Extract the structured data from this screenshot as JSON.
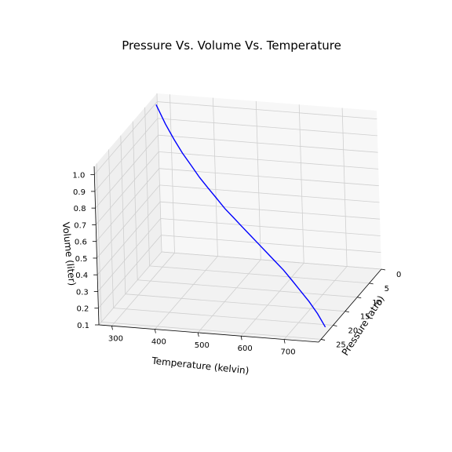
{
  "chart_data": {
    "type": "line3d",
    "title": "Pressure Vs. Volume Vs. Temperature",
    "xlabel": "Temperature (kelvin)",
    "ylabel": "Pressure (atm)",
    "zlabel": "Volume (liter)",
    "x_ticks": [
      "300",
      "400",
      "500",
      "600",
      "700"
    ],
    "y_ticks": [
      "0",
      "5",
      "10",
      "15",
      "20",
      "25"
    ],
    "z_ticks": [
      "0.1",
      "0.2",
      "0.3",
      "0.4",
      "0.5",
      "0.6",
      "0.7",
      "0.8",
      "0.9",
      "1.0"
    ],
    "xlim": [
      270,
      780
    ],
    "ylim": [
      0,
      26
    ],
    "zlim": [
      0.1,
      1.05
    ],
    "grid": true,
    "series": [
      {
        "color": "#0000ff",
        "temperature": [
          273,
          300,
          325,
          350,
          375,
          400,
          425,
          450,
          475,
          500,
          525,
          550,
          575,
          600,
          625,
          650,
          675,
          700,
          725,
          750,
          773
        ],
        "pressure": [
          1.0,
          2.15,
          3.2,
          4.25,
          5.3,
          6.35,
          7.4,
          8.4,
          9.45,
          10.5,
          11.55,
          12.6,
          13.65,
          14.7,
          15.75,
          16.8,
          17.8,
          18.85,
          19.9,
          20.95,
          21.9
        ],
        "volume": [
          1.0,
          0.91,
          0.84,
          0.78,
          0.73,
          0.68,
          0.64,
          0.6,
          0.56,
          0.53,
          0.5,
          0.47,
          0.44,
          0.41,
          0.38,
          0.35,
          0.31,
          0.27,
          0.23,
          0.18,
          0.12
        ]
      }
    ]
  }
}
